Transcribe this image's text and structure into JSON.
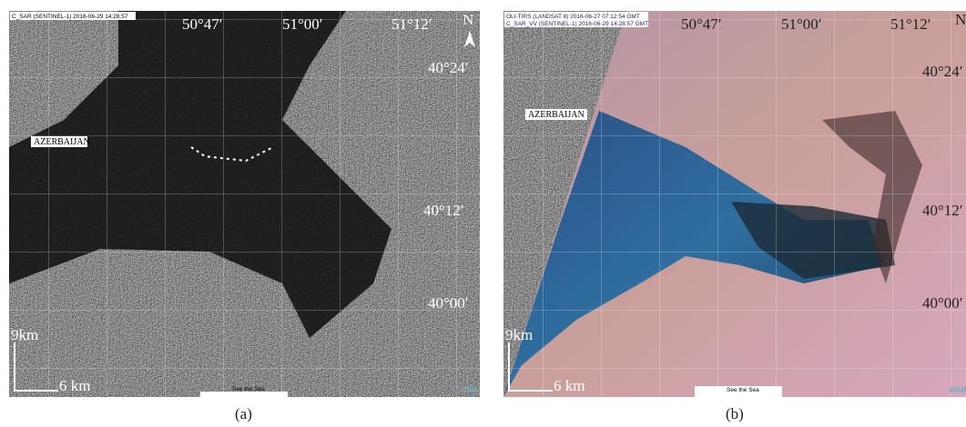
{
  "panels": [
    {
      "header": [
        "C_SAR (SENTINEL-1) 2016-06-29 14:28:57"
      ],
      "longitudes": [
        "50°47′",
        "51°00′",
        "51°12′"
      ],
      "latitudes": [
        "40°24′",
        "40°12′",
        "40°00′"
      ],
      "country": "AZERBAIJAN",
      "north": "N",
      "scale_vertical": "9km",
      "scale_horizontal": "6 km",
      "credit": "See the Sea",
      "logo": "ИКИ",
      "caption": "(a)"
    },
    {
      "header": [
        "OLI-TIRS (LANDSAT 8) 2016-06-27 07:12:54 GMT",
        "C_SAR_VV (SENTINEL-1) 2016-06-29 14:28:57 GMT"
      ],
      "longitudes": [
        "50°47′",
        "51°00′",
        "51°12′"
      ],
      "latitudes": [
        "40°24′",
        "40°12′",
        "40°00′"
      ],
      "country": "AZERBAIJAN",
      "north": "N",
      "scale_vertical": "9km",
      "scale_horizontal": "6 km",
      "credit": "See the Sea",
      "logo": "ИКИ",
      "caption": "(b)"
    }
  ]
}
